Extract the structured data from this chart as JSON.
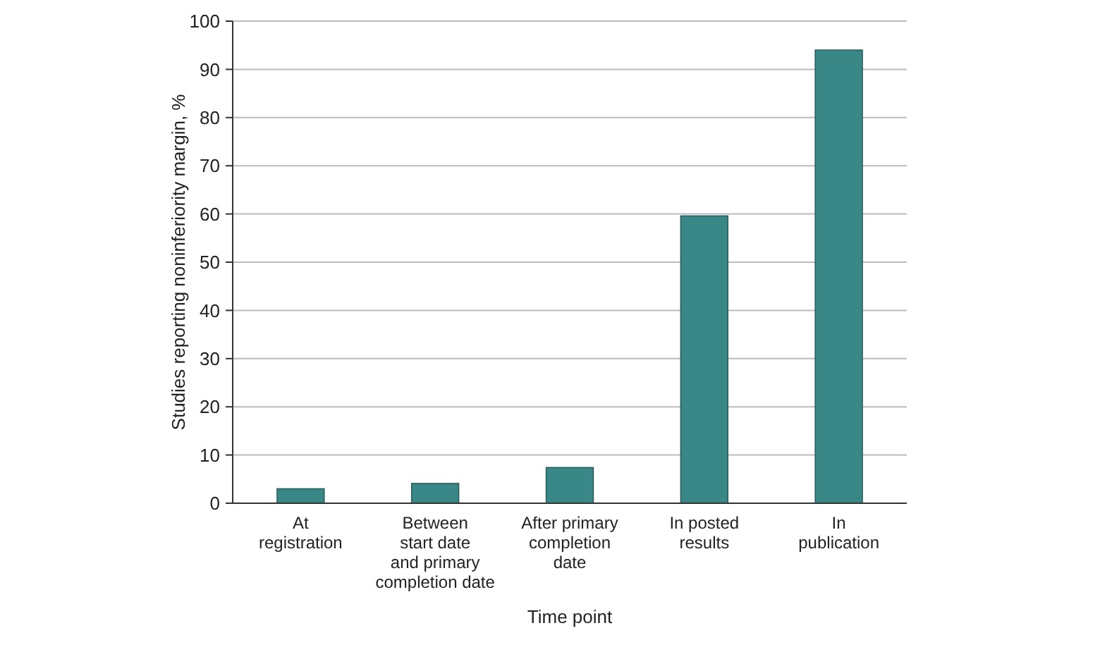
{
  "chart_data": {
    "type": "bar",
    "xlabel": "Time point",
    "ylabel": "Studies reporting noninferiority margin, %",
    "categories": [
      "At\nregistration",
      "Between\nstart date\nand primary\ncompletion date",
      "After primary\ncompletion\ndate",
      "In posted\nresults",
      "In\npublication"
    ],
    "values": [
      3.0,
      4.1,
      7.4,
      59.6,
      94.0
    ],
    "color": "#3a8787",
    "ylim": [
      0,
      100
    ],
    "yticks": [
      0,
      10,
      20,
      30,
      40,
      50,
      60,
      70,
      80,
      90,
      100
    ],
    "grid": "y"
  }
}
